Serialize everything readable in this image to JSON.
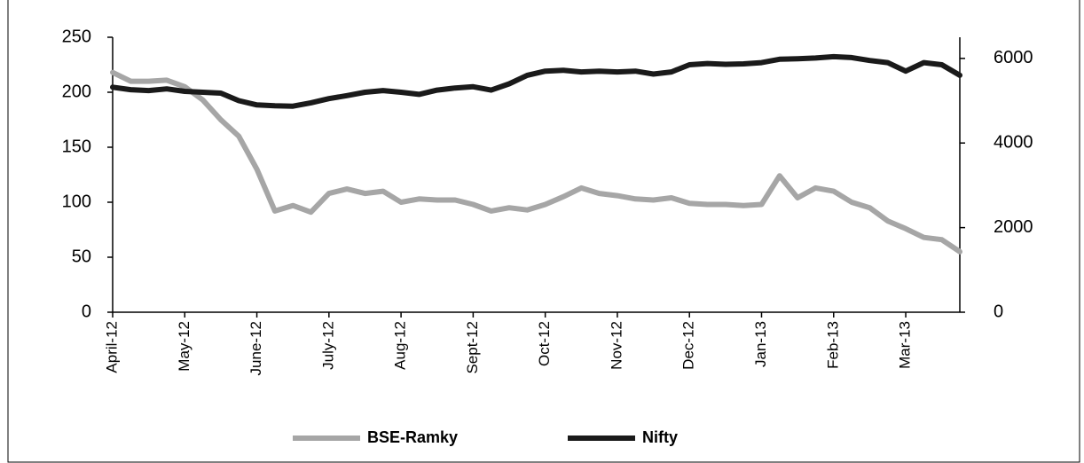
{
  "chart_data": {
    "type": "line",
    "categories": [
      "April-12",
      null,
      null,
      null,
      "May-12",
      null,
      null,
      null,
      "June-12",
      null,
      null,
      null,
      "July-12",
      null,
      null,
      null,
      "Aug-12",
      null,
      null,
      null,
      "Sept-12",
      null,
      null,
      null,
      "Oct-12",
      null,
      null,
      null,
      "Nov-12",
      null,
      null,
      null,
      "Dec-12",
      null,
      null,
      null,
      "Jan-13",
      null,
      null,
      null,
      "Feb-13",
      null,
      null,
      null,
      "Mar-13",
      null,
      null,
      null
    ],
    "series": [
      {
        "name": "BSE-Ramky",
        "color": "#a6a6a6",
        "values": [
          218,
          210,
          210,
          211,
          205,
          193,
          175,
          160,
          130,
          92,
          97,
          91,
          108,
          112,
          108,
          110,
          100,
          103,
          102,
          102,
          98,
          92,
          95,
          93,
          98,
          105,
          113,
          108,
          106,
          103,
          102,
          104,
          99,
          98,
          98,
          97,
          98,
          124,
          104,
          113,
          110,
          100,
          95,
          83,
          76,
          68,
          66,
          55
        ]
      },
      {
        "name": "Nifty",
        "color": "#1a1a1a",
        "axis": "y2",
        "values": [
          5320,
          5260,
          5240,
          5280,
          5220,
          5200,
          5180,
          5000,
          4900,
          4880,
          4870,
          4950,
          5050,
          5120,
          5200,
          5240,
          5200,
          5150,
          5250,
          5300,
          5330,
          5250,
          5400,
          5600,
          5700,
          5720,
          5680,
          5700,
          5680,
          5700,
          5630,
          5680,
          5850,
          5880,
          5860,
          5870,
          5900,
          5980,
          5990,
          6010,
          6040,
          6020,
          5950,
          5900,
          5700,
          5900,
          5850,
          5600
        ]
      }
    ],
    "ylim": [
      0,
      250
    ],
    "yticks": [
      0,
      50,
      100,
      150,
      200,
      250
    ],
    "y2lim": [
      0,
      6500
    ],
    "y2ticks": [
      0,
      2000,
      4000,
      6000
    ],
    "legend": "bottom"
  }
}
